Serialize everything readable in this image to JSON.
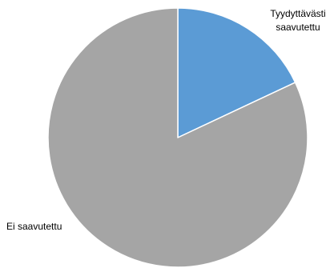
{
  "chart_data": {
    "type": "pie",
    "title": "",
    "start_angle_deg": 0,
    "direction": "clockwise",
    "slices": [
      {
        "label": "Tyydyttävästi saavutettu",
        "label_lines": [
          "Tyydyttävästi",
          "saavutettu"
        ],
        "value": 18,
        "color": "#5b9bd5"
      },
      {
        "label": "Ei saavutettu",
        "label_lines": [
          "Ei saavutettu"
        ],
        "value": 82,
        "color": "#a5a5a5"
      }
    ],
    "slice_border_color": "#ffffff",
    "legend": "none",
    "data_labels": "category-names-outside"
  }
}
